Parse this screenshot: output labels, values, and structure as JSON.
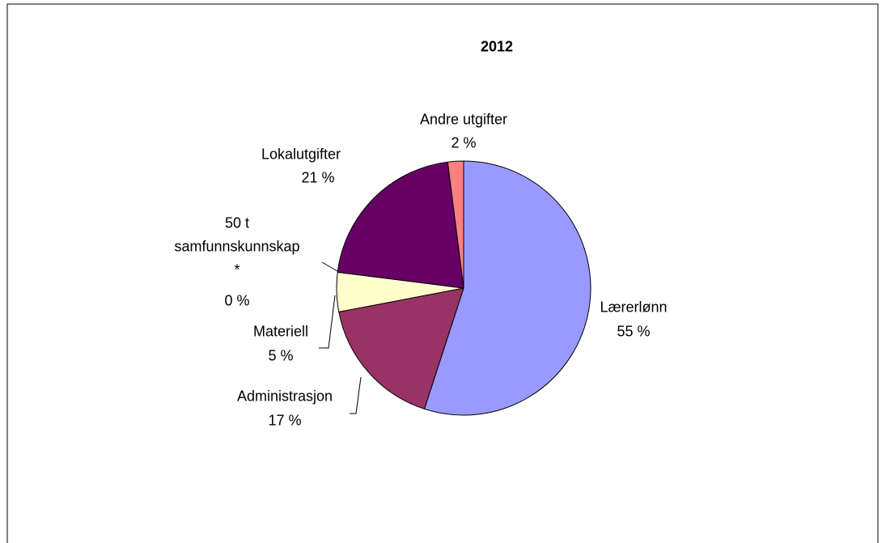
{
  "chart_data": {
    "type": "pie",
    "title": "2012",
    "categories": [
      "Lærerlønn",
      "Administrasjon",
      "Materiell",
      "50 t samfunnskunnskap *",
      "Lokalutgifter",
      "Andre utgifter"
    ],
    "values": [
      55,
      17,
      5,
      0,
      21,
      2
    ],
    "value_labels": [
      "55 %",
      "17 %",
      "5 %",
      "0 %",
      "21 %",
      "2 %"
    ],
    "colors": [
      "#9999ff",
      "#993366",
      "#ffffcc",
      "#ccffff",
      "#660066",
      "#ff8080"
    ]
  }
}
